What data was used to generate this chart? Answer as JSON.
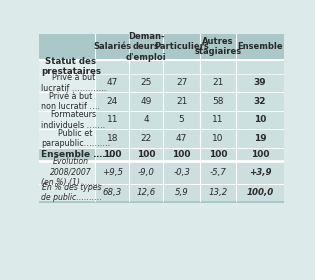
{
  "col_headers": [
    "Salariés",
    "Deman-\ndeurs\nd'emploi",
    "Particuliers",
    "Autres\nstagiaires",
    "Ensemble"
  ],
  "row_section1_label": "Statut des\nprestataires",
  "rows_section1": [
    [
      "Privé à but\nlucratif ………….",
      "47",
      "25",
      "27",
      "21",
      "39"
    ],
    [
      "Privé à but\nnon lucratif ….",
      "24",
      "49",
      "21",
      "58",
      "32"
    ],
    [
      "Formateurs\nindividuels …….",
      "11",
      "4",
      "5",
      "11",
      "10"
    ],
    [
      "Public et\nparapublic……….",
      "18",
      "22",
      "47",
      "10",
      "19"
    ]
  ],
  "ensemble_row": [
    "Ensemble …….",
    "100",
    "100",
    "100",
    "100",
    "100"
  ],
  "rows_section2": [
    [
      "Évolution\n2008/2007\n(en %) (1) …….",
      "+9,5",
      "-9,0",
      "-0,3",
      "-5,7",
      "+3,9"
    ],
    [
      "En % des types\nde public……….",
      "68,3",
      "12,6",
      "5,9",
      "13,2",
      "100,0"
    ]
  ],
  "color_header_bg": "#aac8c8",
  "color_header_left_bg": "#b8d4d4",
  "color_data_col_bg": "#cde0e0",
  "color_label_col_bg": "#e2eeee",
  "color_ensemble_label_bg": "#b8d0d0",
  "color_ensemble_data_bg": "#ccdede",
  "color_sep_line": "#f5f5f5",
  "color_section2_label_bg": "#ddeaea",
  "color_section2_data_bg": "#cddede",
  "color_bottom_border": "#aac8c8",
  "color_text_dark": "#2a2a2a",
  "color_text_header": "#2a2a2a"
}
